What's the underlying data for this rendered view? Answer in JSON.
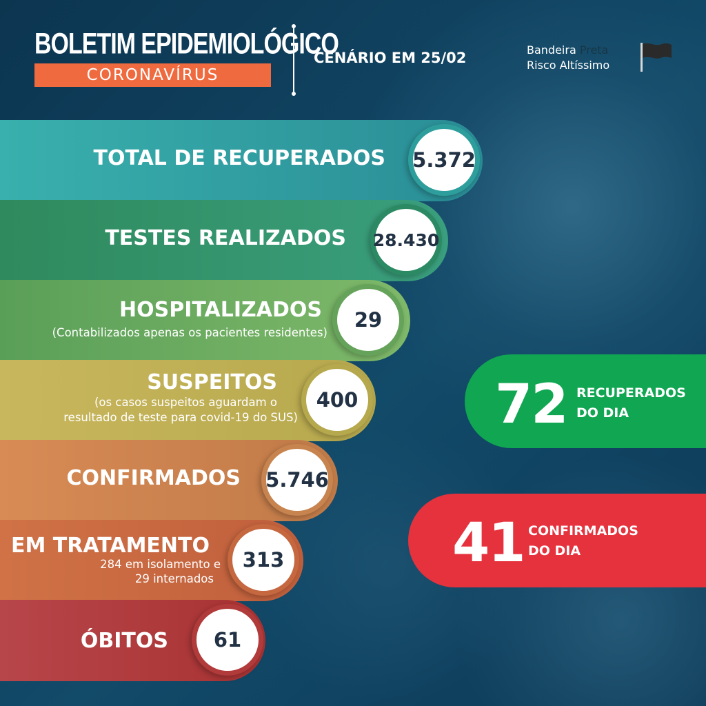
{
  "header": {
    "title": "BOLETIM EPIDEMIOLÓGICO",
    "subtitle": "CORONAVÍRUS",
    "scenario": "CENÁRIO EM 25/02",
    "flag_line1_prefix": "Bandeira ",
    "flag_line1_color": "Preta",
    "flag_line2": "Risco Altíssimo",
    "flag_icon": "black-flag-icon"
  },
  "stats": [
    {
      "label": "TOTAL DE RECUPERADOS",
      "value": "5.372",
      "color": "#2e9e9c"
    },
    {
      "label": "TESTES REALIZADOS",
      "value": "28.430",
      "color": "#2b8a63"
    },
    {
      "label": "HOSPITALIZADOS",
      "note": "(Contabilizados apenas os pacientes residentes)",
      "value": "29",
      "color": "#66a35a"
    },
    {
      "label": "SUSPEITOS",
      "note_line1": "(os casos suspeitos aguardam o",
      "note_line2": "resultado de teste para covid-19 do SUS)",
      "value": "400",
      "color": "#c2b056"
    },
    {
      "label": "CONFIRMADOS",
      "value": "5.746",
      "color": "#c7844e"
    },
    {
      "label": "EM TRATAMENTO",
      "note_line1": "284 em isolamento e",
      "note_line2": "29 internados",
      "value": "313",
      "color": "#c5673f"
    },
    {
      "label": "ÓBITOS",
      "value": "61",
      "color": "#b13a3a"
    }
  ],
  "daily": [
    {
      "number": "72",
      "line1": "RECUPERADOS",
      "line2": "DO DIA",
      "color": "#10a652"
    },
    {
      "number": "41",
      "line1": "CONFIRMADOS",
      "line2": "DO DIA",
      "color": "#e5323d"
    }
  ]
}
